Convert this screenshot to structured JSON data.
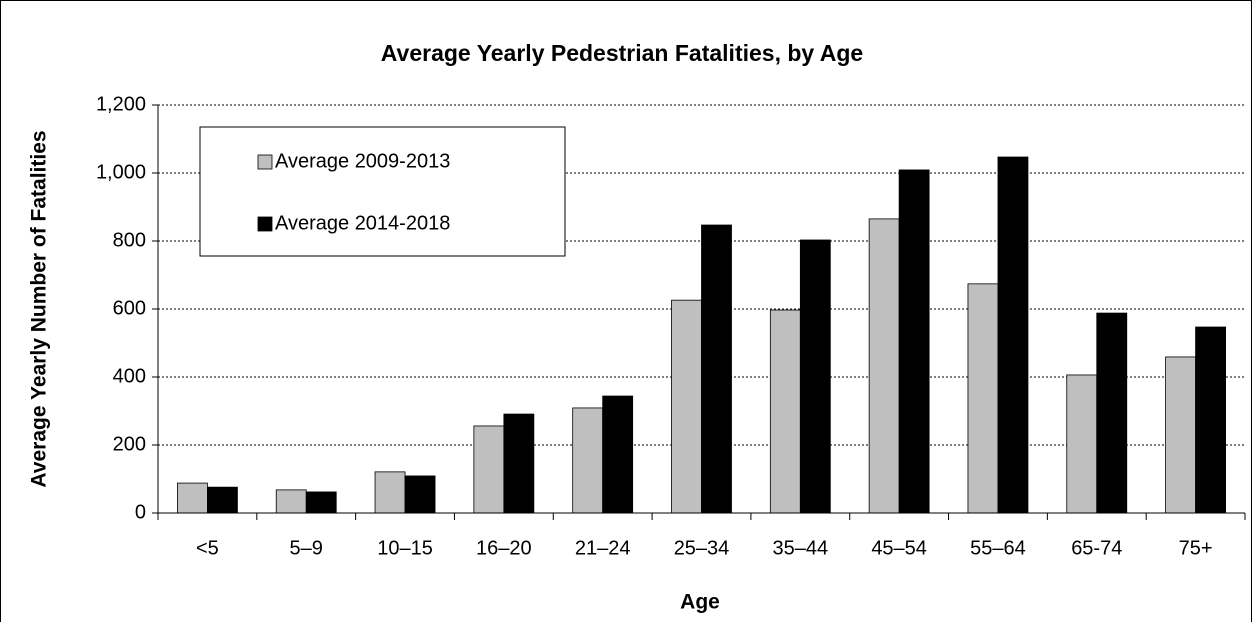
{
  "chart_data": {
    "type": "bar",
    "title": "Average Yearly Pedestrian Fatalities, by Age",
    "x_label": "Age",
    "y_label": "Average Yearly Number of Fatalities",
    "categories": [
      "<5",
      "5–9",
      "10–15",
      "16–20",
      "21–24",
      "25–34",
      "35–44",
      "45–54",
      "55–64",
      "65-74",
      "75+"
    ],
    "series": [
      {
        "name": "Average 2009-2013",
        "color": "#bfbfbf",
        "values": [
          88,
          68,
          121,
          256,
          309,
          626,
          597,
          865,
          674,
          406,
          459
        ]
      },
      {
        "name": "Average 2014-2018",
        "color": "#000000",
        "values": [
          76,
          62,
          109,
          291,
          344,
          847,
          803,
          1009,
          1047,
          588,
          547
        ]
      }
    ],
    "ylim": [
      0,
      1200
    ],
    "yticks": [
      0,
      200,
      400,
      600,
      800,
      {
        "value": 1000,
        "label": "1,000"
      },
      {
        "value": 1200,
        "label": "1,200"
      }
    ],
    "grid": true,
    "legend": "upper left"
  }
}
